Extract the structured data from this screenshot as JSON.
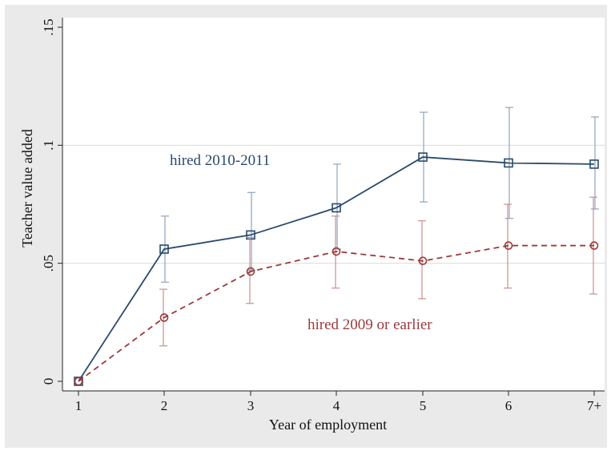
{
  "chart_data": {
    "type": "line",
    "title": "",
    "xlabel": "Year of employment",
    "ylabel": "Teacher value added",
    "categories": [
      "1",
      "2",
      "3",
      "4",
      "5",
      "6",
      "7+"
    ],
    "ylim": [
      0,
      0.15
    ],
    "yticks": [
      {
        "value": 0,
        "label": "0"
      },
      {
        "value": 0.05,
        "label": ".05"
      },
      {
        "value": 0.1,
        "label": ".1"
      },
      {
        "value": 0.15,
        "label": ".15"
      }
    ],
    "grid": true,
    "series": [
      {
        "name": "hired 2010-2011",
        "color": "#2b4a6b",
        "marker": "square",
        "dash": "solid",
        "values": [
          0,
          0.056,
          0.062,
          0.0735,
          0.095,
          0.0925,
          0.092
        ],
        "ci_low": [
          null,
          0.042,
          0.047,
          0.056,
          0.076,
          0.069,
          0.073
        ],
        "ci_high": [
          null,
          0.07,
          0.08,
          0.092,
          0.114,
          0.116,
          0.112
        ]
      },
      {
        "name": "hired 2009 or earlier",
        "color": "#9b3a3c",
        "marker": "circle",
        "dash": "dashed",
        "values": [
          0,
          0.027,
          0.0465,
          0.055,
          0.051,
          0.0575,
          0.0575
        ],
        "ci_low": [
          null,
          0.015,
          0.033,
          0.0395,
          0.035,
          0.0395,
          0.037
        ],
        "ci_high": [
          null,
          0.039,
          0.061,
          0.07,
          0.068,
          0.075,
          0.078
        ]
      }
    ]
  }
}
